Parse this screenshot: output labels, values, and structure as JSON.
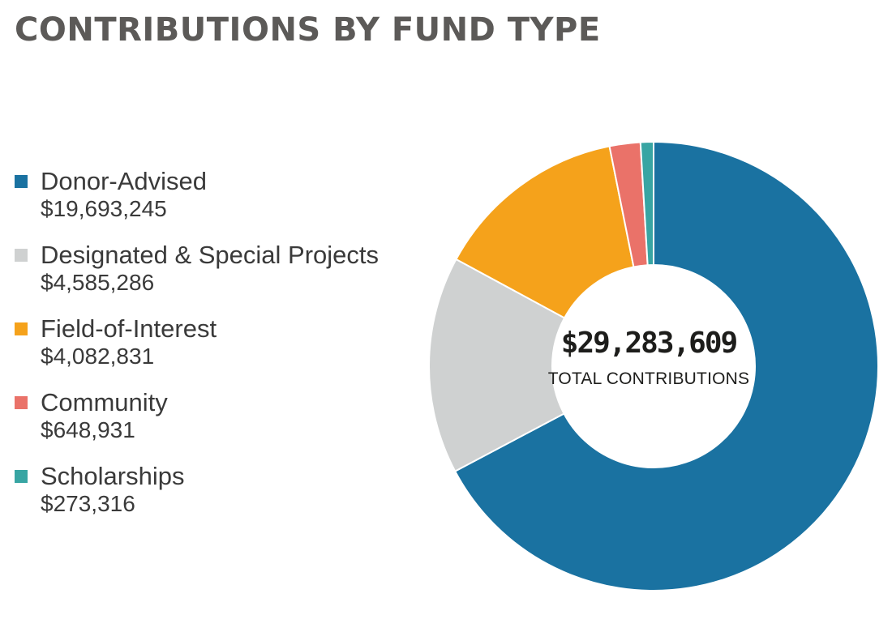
{
  "chart_data": {
    "type": "pie",
    "title": "CONTRIBUTIONS BY FUND TYPE",
    "center_value": "$29,283,609",
    "center_label": "TOTAL CONTRIBUTIONS",
    "legend_position": "left",
    "slices": [
      {
        "label": "Donor-Advised",
        "value": 19693245,
        "value_label": "$19,693,245",
        "color": "#1a72a1"
      },
      {
        "label": "Designated & Special Projects",
        "value": 4585286,
        "value_label": "$4,585,286",
        "color": "#cfd1d1"
      },
      {
        "label": "Field-of-Interest",
        "value": 4082831,
        "value_label": "$4,082,831",
        "color": "#f5a21b"
      },
      {
        "label": "Community",
        "value": 648931,
        "value_label": "$648,931",
        "color": "#ea7269"
      },
      {
        "label": "Scholarships",
        "value": 273316,
        "value_label": "$273,316",
        "color": "#38a5a3"
      }
    ]
  }
}
